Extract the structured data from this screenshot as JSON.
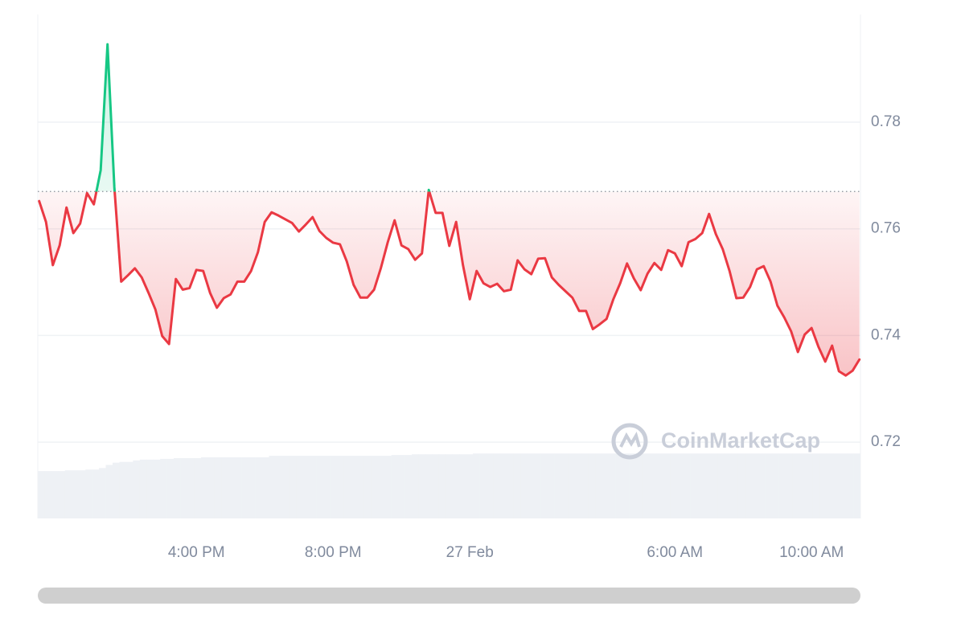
{
  "chart_data": {
    "type": "line",
    "x": [
      11.4,
      11.6,
      11.8,
      12.0,
      12.2,
      12.4,
      12.6,
      12.8,
      13.0,
      13.2,
      13.4,
      13.6,
      13.8,
      14.0,
      14.2,
      14.4,
      14.6,
      14.8,
      15.0,
      15.2,
      15.4,
      15.6,
      15.8,
      16.0,
      16.2,
      16.4,
      16.6,
      16.8,
      17.0,
      17.2,
      17.4,
      17.6,
      17.8,
      18.0,
      18.2,
      18.4,
      18.6,
      18.8,
      19.0,
      19.2,
      19.4,
      19.6,
      19.8,
      20.0,
      20.2,
      20.4,
      20.6,
      20.8,
      21.0,
      21.2,
      21.4,
      21.6,
      21.8,
      22.0,
      22.2,
      22.4,
      22.6,
      22.8,
      23.0,
      23.2,
      23.4,
      23.6,
      23.8,
      24.0,
      24.2,
      24.4,
      24.6,
      24.8,
      25.0,
      25.2,
      25.4,
      25.6,
      25.8,
      26.0,
      26.2,
      26.4,
      26.6,
      26.8,
      27.0,
      27.2,
      27.4,
      27.6,
      27.8,
      28.0,
      28.2,
      28.4,
      28.6,
      28.8,
      29.0,
      29.2,
      29.4,
      29.6,
      29.8,
      30.0,
      30.2,
      30.4,
      30.6,
      30.8,
      31.0,
      31.2,
      31.4,
      31.6,
      31.8,
      32.0,
      32.2,
      32.4,
      32.6,
      32.8,
      33.0,
      33.2,
      33.4,
      33.6,
      33.8,
      34.0,
      34.2,
      34.4,
      34.6,
      34.8,
      35.0,
      35.2,
      35.4
    ],
    "values": [
      0.7652,
      0.7613,
      0.7532,
      0.7569,
      0.764,
      0.7592,
      0.761,
      0.7667,
      0.7646,
      0.771,
      0.7946,
      0.7678,
      0.7501,
      0.7513,
      0.7526,
      0.7509,
      0.748,
      0.7449,
      0.7399,
      0.7384,
      0.7506,
      0.7486,
      0.7489,
      0.7523,
      0.7521,
      0.748,
      0.7452,
      0.747,
      0.7477,
      0.7501,
      0.7501,
      0.7521,
      0.7556,
      0.7613,
      0.7631,
      0.7625,
      0.7618,
      0.7611,
      0.7595,
      0.7608,
      0.7622,
      0.7596,
      0.7583,
      0.7574,
      0.7571,
      0.7539,
      0.7495,
      0.7471,
      0.7471,
      0.7486,
      0.7527,
      0.7575,
      0.7616,
      0.7569,
      0.7562,
      0.7542,
      0.7554,
      0.7673,
      0.763,
      0.763,
      0.7568,
      0.7613,
      0.7532,
      0.7468,
      0.7521,
      0.7498,
      0.7491,
      0.7497,
      0.7483,
      0.7486,
      0.7541,
      0.7524,
      0.7515,
      0.7544,
      0.7545,
      0.7509,
      0.7495,
      0.7483,
      0.7471,
      0.7446,
      0.7446,
      0.7412,
      0.7421,
      0.7431,
      0.7468,
      0.7498,
      0.7535,
      0.7507,
      0.7485,
      0.7516,
      0.7536,
      0.7523,
      0.756,
      0.7554,
      0.753,
      0.7575,
      0.7581,
      0.7592,
      0.7628,
      0.759,
      0.7562,
      0.7521,
      0.747,
      0.7471,
      0.7491,
      0.7524,
      0.753,
      0.7501,
      0.7456,
      0.7434,
      0.7408,
      0.7369,
      0.7402,
      0.7414,
      0.7379,
      0.7351,
      0.7381,
      0.7333,
      0.7325,
      0.7334,
      0.7355
    ],
    "volume": [
      62,
      62,
      62,
      62,
      63,
      63,
      63,
      64,
      64,
      66,
      70,
      73,
      74,
      74,
      76,
      77,
      77,
      77,
      78,
      78,
      79,
      79,
      79,
      79,
      80,
      80,
      80,
      80,
      80,
      80,
      80,
      80,
      80,
      80,
      82,
      82,
      82,
      82,
      82,
      82,
      82,
      82,
      82,
      82,
      82,
      82,
      82,
      82,
      82,
      82,
      82,
      82,
      83,
      83,
      83,
      84,
      84,
      84,
      84,
      84,
      84,
      84,
      84,
      84,
      85,
      85,
      85,
      85,
      85,
      85,
      85,
      85,
      85,
      85,
      85,
      85,
      85,
      85,
      85,
      85,
      85,
      85,
      85,
      85,
      85,
      85,
      85,
      85,
      85,
      85,
      85,
      85,
      85,
      85,
      85,
      85,
      85,
      85,
      85,
      85,
      85,
      85,
      85,
      85,
      85,
      85,
      85,
      85,
      85,
      85,
      85,
      85,
      85,
      85,
      85,
      85,
      85,
      85,
      85,
      85,
      85
    ],
    "volume_lim": [
      0,
      100
    ],
    "baseline": 0.767,
    "color_up": "#16c784",
    "color_down": "#ea3943",
    "volume_color": "#eef1f5",
    "xlim": [
      11.36,
      35.43
    ],
    "ylim": [
      0.7057,
      0.8002
    ],
    "yticks": [
      0.72,
      0.74,
      0.76,
      0.78
    ],
    "xticks": [
      {
        "value": 16,
        "label": "4:00 PM"
      },
      {
        "value": 20,
        "label": "8:00 PM"
      },
      {
        "value": 24,
        "label": "27 Feb"
      },
      {
        "value": 30,
        "label": "6:00 AM"
      },
      {
        "value": 34,
        "label": "10:00 AM"
      }
    ],
    "grid": true,
    "watermark": "CoinMarketCap"
  }
}
